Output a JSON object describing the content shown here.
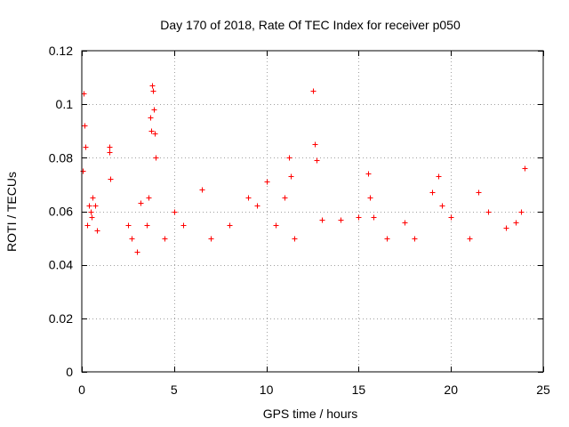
{
  "chart_data": {
    "type": "scatter",
    "title": "Day 170 of 2018, Rate Of TEC Index for receiver p050",
    "xlabel": "GPS time / hours",
    "ylabel": "ROTI / TECUs",
    "xlim": [
      0,
      25
    ],
    "ylim": [
      0,
      0.12
    ],
    "xticks": [
      0,
      5,
      10,
      15,
      20,
      25
    ],
    "yticks": [
      0,
      0.02,
      0.04,
      0.06,
      0.08,
      0.1,
      0.12
    ],
    "xtick_labels": [
      "0",
      "5",
      "10",
      "15",
      "20",
      "25"
    ],
    "ytick_labels": [
      "0",
      "0.02",
      "0.04",
      "0.06",
      "0.08",
      "0.1",
      "0.12"
    ],
    "grid": true,
    "marker": "plus",
    "color": "#ff0000",
    "series": [
      {
        "name": "ROTI",
        "x": [
          0.05,
          0.1,
          0.15,
          0.2,
          0.3,
          0.4,
          0.5,
          0.55,
          0.6,
          0.7,
          0.8,
          1.5,
          1.5,
          1.55,
          2.5,
          2.7,
          3.0,
          3.2,
          3.5,
          3.6,
          3.7,
          3.75,
          3.8,
          3.85,
          3.9,
          3.95,
          4.0,
          4.5,
          5.0,
          5.5,
          6.5,
          7.0,
          8.0,
          9.0,
          9.5,
          10.0,
          10.5,
          11.0,
          11.2,
          11.3,
          11.5,
          12.5,
          12.6,
          12.7,
          13.0,
          14.0,
          15.0,
          15.5,
          15.6,
          15.8,
          16.5,
          17.5,
          18.0,
          19.0,
          19.3,
          19.5,
          20.0,
          21.0,
          21.5,
          22.0,
          23.0,
          23.5,
          23.8,
          24.0
        ],
        "y": [
          0.075,
          0.104,
          0.092,
          0.084,
          0.055,
          0.062,
          0.06,
          0.058,
          0.065,
          0.062,
          0.053,
          0.084,
          0.082,
          0.072,
          0.055,
          0.05,
          0.045,
          0.063,
          0.055,
          0.065,
          0.095,
          0.09,
          0.107,
          0.105,
          0.098,
          0.089,
          0.08,
          0.05,
          0.06,
          0.055,
          0.068,
          0.05,
          0.055,
          0.065,
          0.062,
          0.071,
          0.055,
          0.065,
          0.08,
          0.073,
          0.05,
          0.105,
          0.085,
          0.079,
          0.057,
          0.057,
          0.058,
          0.074,
          0.065,
          0.058,
          0.05,
          0.056,
          0.05,
          0.067,
          0.073,
          0.062,
          0.058,
          0.05,
          0.067,
          0.06,
          0.054,
          0.056,
          0.06,
          0.076
        ]
      }
    ]
  }
}
